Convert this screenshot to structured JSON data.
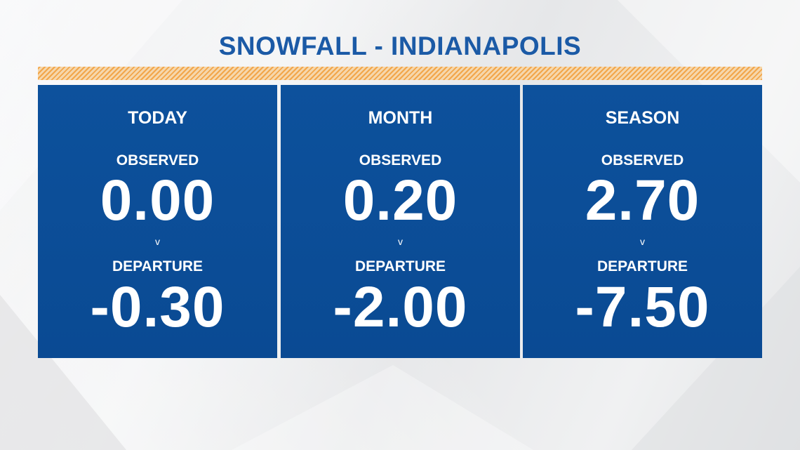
{
  "title": "SNOWFALL - INDIANAPOLIS",
  "colors": {
    "title": "#1b5aa6",
    "panel": "#0d519c",
    "stripe": "#f2a64a",
    "text": "#ffffff"
  },
  "panels": [
    {
      "heading": "TODAY",
      "observed_label": "OBSERVED",
      "observed_value": "0.00",
      "separator": "v",
      "departure_label": "DEPARTURE",
      "departure_value": "-0.30"
    },
    {
      "heading": "MONTH",
      "observed_label": "OBSERVED",
      "observed_value": "0.20",
      "separator": "v",
      "departure_label": "DEPARTURE",
      "departure_value": "-2.00"
    },
    {
      "heading": "SEASON",
      "observed_label": "OBSERVED",
      "observed_value": "2.70",
      "separator": "v",
      "departure_label": "DEPARTURE",
      "departure_value": "-7.50"
    }
  ]
}
